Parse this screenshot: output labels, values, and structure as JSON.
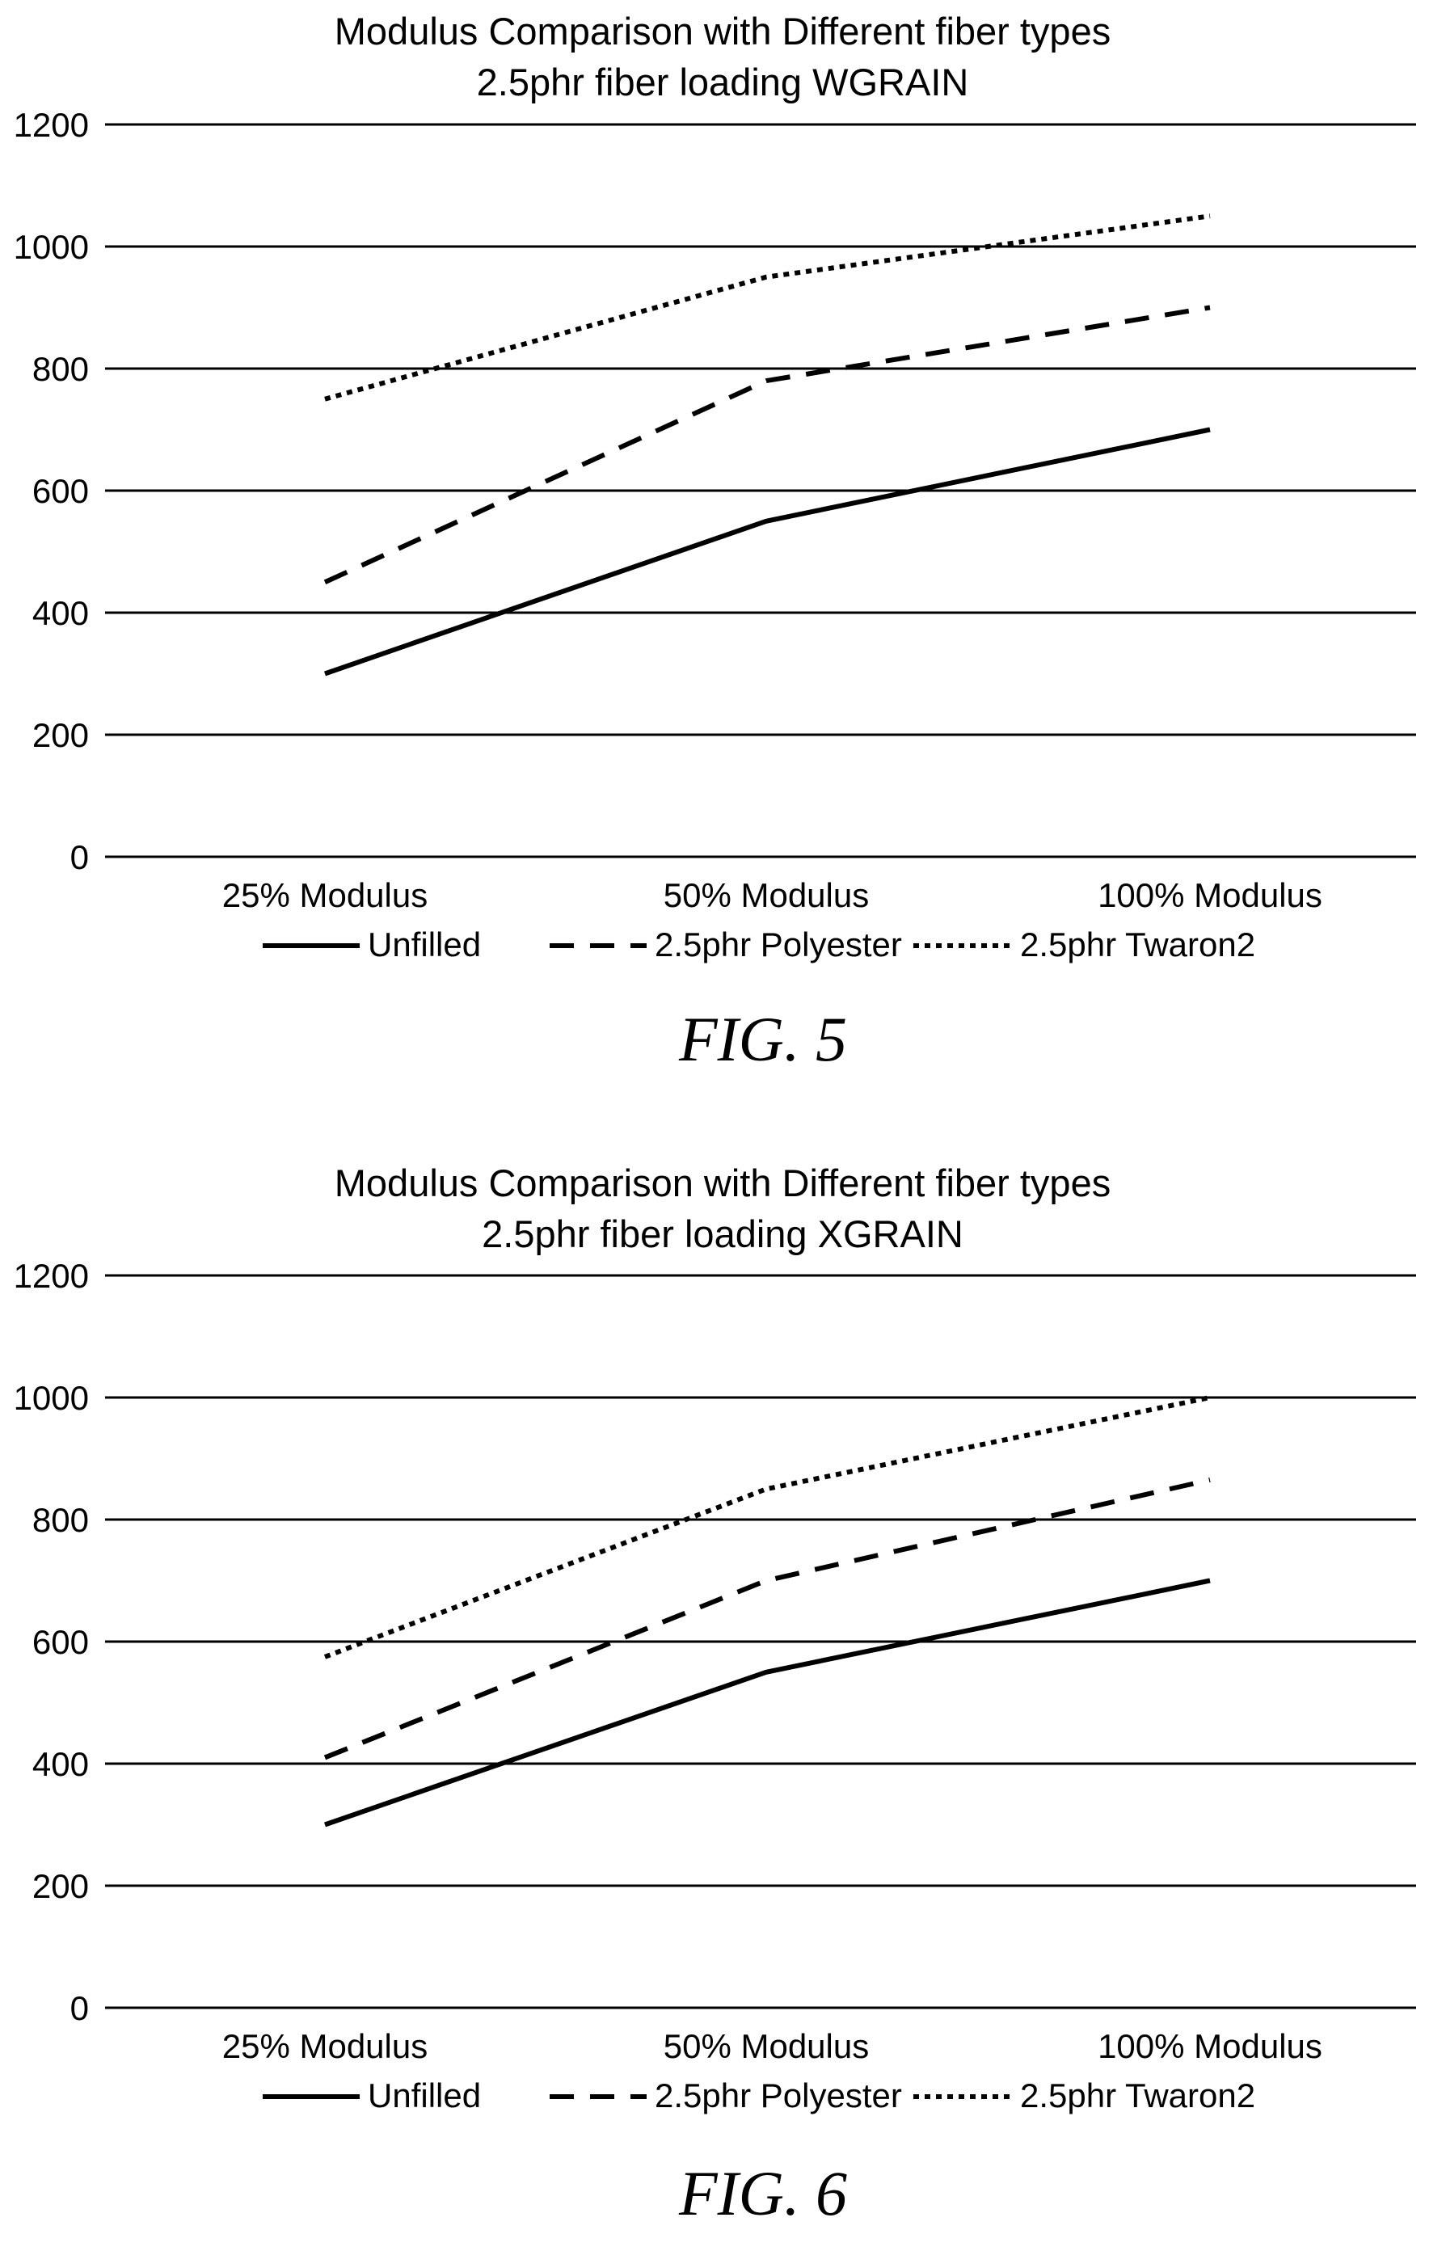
{
  "chart_data": [
    {
      "type": "line",
      "title": "Modulus Comparison with Different fiber types",
      "subtitle": "2.5phr fiber loading WGRAIN",
      "categories": [
        "25% Modulus",
        "50% Modulus",
        "100% Modulus"
      ],
      "yticks": [
        "0",
        "200",
        "400",
        "600",
        "800",
        "1000",
        "1200"
      ],
      "ylim": [
        0,
        1200
      ],
      "grid": true,
      "legend_position": "bottom",
      "series": [
        {
          "name": "Unfilled",
          "style": "solid",
          "values": [
            300,
            550,
            700
          ]
        },
        {
          "name": "2.5phr Polyester",
          "style": "dashed",
          "values": [
            450,
            780,
            900
          ]
        },
        {
          "name": "2.5phr Twaron2",
          "style": "dotted",
          "values": [
            750,
            950,
            1050
          ]
        }
      ],
      "caption": "FIG. 5"
    },
    {
      "type": "line",
      "title": "Modulus Comparison with Different fiber types",
      "subtitle": "2.5phr fiber loading XGRAIN",
      "categories": [
        "25% Modulus",
        "50% Modulus",
        "100% Modulus"
      ],
      "yticks": [
        "0",
        "200",
        "400",
        "600",
        "800",
        "1000",
        "1200"
      ],
      "ylim": [
        0,
        1200
      ],
      "grid": true,
      "legend_position": "bottom",
      "series": [
        {
          "name": "Unfilled",
          "style": "solid",
          "values": [
            300,
            550,
            700
          ]
        },
        {
          "name": "2.5phr Polyester",
          "style": "dashed",
          "values": [
            410,
            700,
            865
          ]
        },
        {
          "name": "2.5phr Twaron2",
          "style": "dotted",
          "values": [
            575,
            850,
            1000
          ]
        }
      ],
      "caption": "FIG. 6"
    }
  ]
}
